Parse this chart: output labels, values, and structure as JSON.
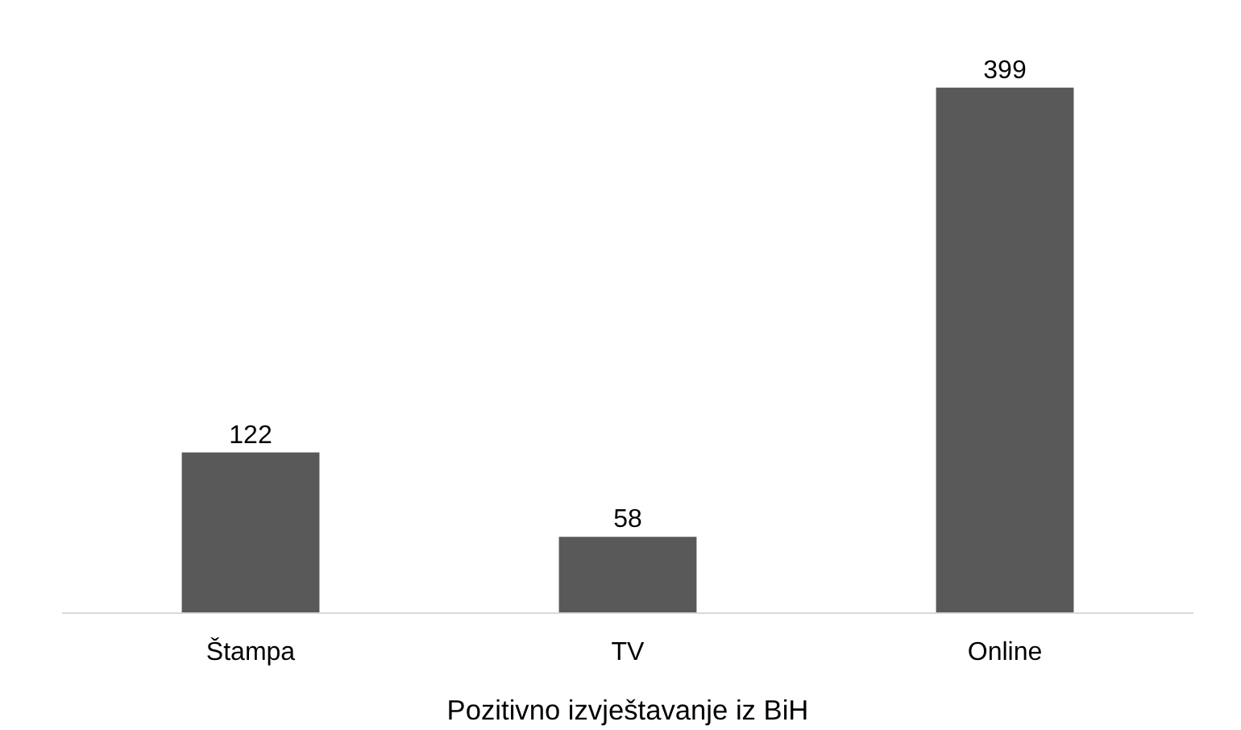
{
  "chart_data": {
    "type": "bar",
    "xlabel": "Pozitivno izvještavanje iz BiH",
    "categories": [
      "Štampa",
      "TV",
      "Online"
    ],
    "values": [
      122,
      58,
      399
    ],
    "color": "#595959",
    "data_labels": true,
    "grid": false
  }
}
